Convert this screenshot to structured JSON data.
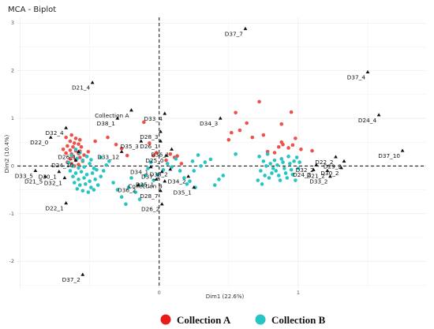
{
  "chart_data": {
    "type": "scatter",
    "title": "MCA - Biplot",
    "xlabel": "Dim1 (22.6%)",
    "ylabel": "Dim2 (10.4%)",
    "xlim": [
      -1.02,
      1.92
    ],
    "ylim": [
      -2.56,
      3.12
    ],
    "x_ticks": [
      0,
      1
    ],
    "y_ticks": [
      -2,
      -1,
      0,
      1,
      2,
      3
    ],
    "reference_lines": {
      "x": 0,
      "y": 0,
      "style": "dashed"
    },
    "grid": true,
    "legend_position": "bottom",
    "series": [
      {
        "name": "Collection A",
        "color": "#f0504a",
        "points": [
          [
            -0.67,
            0.6
          ],
          [
            -0.63,
            0.65
          ],
          [
            -0.6,
            0.58
          ],
          [
            -0.57,
            0.55
          ],
          [
            -0.64,
            0.52
          ],
          [
            -0.61,
            0.48
          ],
          [
            -0.58,
            0.46
          ],
          [
            -0.66,
            0.42
          ],
          [
            -0.62,
            0.4
          ],
          [
            -0.56,
            0.4
          ],
          [
            -0.69,
            0.35
          ],
          [
            -0.64,
            0.33
          ],
          [
            -0.6,
            0.32
          ],
          [
            -0.57,
            0.31
          ],
          [
            -0.67,
            0.27
          ],
          [
            -0.63,
            0.25
          ],
          [
            -0.58,
            0.26
          ],
          [
            -0.62,
            0.2
          ],
          [
            -0.57,
            0.18
          ],
          [
            -0.64,
            0.15
          ],
          [
            -0.6,
            0.12
          ],
          [
            -0.55,
            0.1
          ],
          [
            -0.66,
            0.08
          ],
          [
            -0.63,
            0.05
          ],
          [
            -0.58,
            0.03
          ],
          [
            -0.61,
            0.0
          ],
          [
            -0.54,
            0.23
          ],
          [
            -0.51,
            0.3
          ],
          [
            -0.46,
            0.52
          ],
          [
            -0.37,
            0.6
          ],
          [
            -0.27,
            0.37
          ],
          [
            -0.31,
            0.45
          ],
          [
            -0.23,
            0.22
          ],
          [
            -0.11,
            0.92
          ],
          [
            -0.07,
            0.48
          ],
          [
            -0.04,
            0.22
          ],
          [
            -0.02,
            0.28
          ],
          [
            0.05,
            0.12
          ],
          [
            0.08,
            0.25
          ],
          [
            0.11,
            0.18
          ],
          [
            0.13,
            0.21
          ],
          [
            0.16,
            0.05
          ],
          [
            0.55,
            1.12
          ],
          [
            0.72,
            1.35
          ],
          [
            0.63,
            0.9
          ],
          [
            0.58,
            0.75
          ],
          [
            0.5,
            0.55
          ],
          [
            0.52,
            0.7
          ],
          [
            0.67,
            0.6
          ],
          [
            0.75,
            0.65
          ],
          [
            0.78,
            0.3
          ],
          [
            0.83,
            0.28
          ],
          [
            0.88,
            0.5
          ],
          [
            0.95,
            1.13
          ],
          [
            0.98,
            0.58
          ],
          [
            1.1,
            0.32
          ],
          [
            0.88,
            0.88
          ],
          [
            1.02,
            0.35
          ],
          [
            0.86,
            0.4
          ],
          [
            0.89,
            0.45
          ],
          [
            0.93,
            0.38
          ],
          [
            0.96,
            0.44
          ]
        ]
      },
      {
        "name": "Collection B",
        "color": "#27c4c4",
        "points": [
          [
            -0.6,
            0.35
          ],
          [
            -0.57,
            0.28
          ],
          [
            -0.63,
            0.22
          ],
          [
            -0.59,
            0.16
          ],
          [
            -0.55,
            0.12
          ],
          [
            -0.52,
            0.2
          ],
          [
            -0.49,
            0.13
          ],
          [
            -0.65,
            0.07
          ],
          [
            -0.62,
            0.0
          ],
          [
            -0.58,
            -0.04
          ],
          [
            -0.54,
            -0.02
          ],
          [
            -0.5,
            0.05
          ],
          [
            -0.47,
            -0.05
          ],
          [
            -0.64,
            -0.1
          ],
          [
            -0.6,
            -0.15
          ],
          [
            -0.56,
            -0.12
          ],
          [
            -0.52,
            -0.18
          ],
          [
            -0.48,
            -0.15
          ],
          [
            -0.45,
            -0.08
          ],
          [
            -0.62,
            -0.22
          ],
          [
            -0.58,
            -0.28
          ],
          [
            -0.54,
            -0.25
          ],
          [
            -0.5,
            -0.32
          ],
          [
            -0.46,
            -0.28
          ],
          [
            -0.61,
            -0.35
          ],
          [
            -0.57,
            -0.4
          ],
          [
            -0.53,
            -0.38
          ],
          [
            -0.49,
            -0.45
          ],
          [
            -0.59,
            -0.48
          ],
          [
            -0.55,
            -0.52
          ],
          [
            -0.51,
            -0.55
          ],
          [
            -0.47,
            -0.5
          ],
          [
            -0.44,
            -0.4
          ],
          [
            -0.42,
            -0.22
          ],
          [
            -0.4,
            -0.1
          ],
          [
            -0.38,
            0.02
          ],
          [
            -0.36,
            0.1
          ],
          [
            -0.42,
            0.18
          ],
          [
            -0.33,
            -0.35
          ],
          [
            -0.3,
            -0.5
          ],
          [
            -0.27,
            -0.65
          ],
          [
            -0.24,
            -0.8
          ],
          [
            -0.22,
            -0.45
          ],
          [
            -0.2,
            -0.25
          ],
          [
            -0.17,
            -0.55
          ],
          [
            -0.14,
            -0.7
          ],
          [
            -0.12,
            -0.4
          ],
          [
            -0.1,
            -0.2
          ],
          [
            -0.08,
            -0.05
          ],
          [
            -0.06,
            0.08
          ],
          [
            -0.04,
            -0.3
          ],
          [
            -0.01,
            -0.18
          ],
          [
            0.03,
            -0.08
          ],
          [
            0.06,
            0.05
          ],
          [
            0.09,
            -0.02
          ],
          [
            0.12,
            0.15
          ],
          [
            0.15,
            -0.1
          ],
          [
            0.18,
            -0.25
          ],
          [
            0.2,
            -0.38
          ],
          [
            0.22,
            -0.32
          ],
          [
            0.24,
            0.1
          ],
          [
            0.26,
            -0.45
          ],
          [
            0.28,
            0.23
          ],
          [
            0.3,
            0.0
          ],
          [
            0.33,
            0.08
          ],
          [
            0.37,
            0.14
          ],
          [
            0.4,
            -0.4
          ],
          [
            0.43,
            -0.28
          ],
          [
            0.46,
            -0.2
          ],
          [
            0.55,
            0.25
          ],
          [
            0.25,
            -0.1
          ],
          [
            0.72,
            0.2
          ],
          [
            0.75,
            0.1
          ],
          [
            0.77,
            0.0
          ],
          [
            0.73,
            -0.1
          ],
          [
            0.76,
            -0.2
          ],
          [
            0.71,
            -0.3
          ],
          [
            0.74,
            -0.38
          ],
          [
            0.79,
            -0.25
          ],
          [
            0.81,
            -0.15
          ],
          [
            0.8,
            0.05
          ],
          [
            0.83,
            0.12
          ],
          [
            0.82,
            -0.05
          ],
          [
            0.85,
            0.02
          ],
          [
            0.84,
            -0.1
          ],
          [
            0.86,
            -0.2
          ],
          [
            0.87,
            -0.3
          ],
          [
            0.89,
            0.08
          ],
          [
            0.88,
            0.15
          ],
          [
            0.9,
            -0.05
          ],
          [
            0.91,
            -0.15
          ],
          [
            0.92,
            -0.25
          ],
          [
            0.93,
            0.2
          ],
          [
            0.94,
            0.05
          ],
          [
            0.95,
            -0.08
          ],
          [
            0.96,
            -0.18
          ],
          [
            0.97,
            0.1
          ],
          [
            0.98,
            -0.3
          ],
          [
            0.99,
            0.18
          ],
          [
            1.0,
            -0.05
          ],
          [
            1.01,
            0.08
          ],
          [
            0.78,
            0.25
          ]
        ]
      }
    ],
    "variables": [
      {
        "label": "D37_7",
        "x": 0.62,
        "y": 2.88
      },
      {
        "label": "D37_4",
        "x": 1.5,
        "y": 1.97
      },
      {
        "label": "D21_4",
        "x": -0.48,
        "y": 1.75
      },
      {
        "label": "Collection A",
        "x": -0.2,
        "y": 1.17
      },
      {
        "label": "D33_4",
        "x": 0.04,
        "y": 1.1
      },
      {
        "label": "D34_3",
        "x": 0.44,
        "y": 1.0
      },
      {
        "label": "D38_1",
        "x": -0.3,
        "y": 1.0
      },
      {
        "label": "D24_4",
        "x": 1.58,
        "y": 1.07
      },
      {
        "label": "D32_4",
        "x": -0.67,
        "y": 0.8
      },
      {
        "label": "D28_3",
        "x": 0.01,
        "y": 0.72
      },
      {
        "label": "D22_0",
        "x": -0.78,
        "y": 0.6
      },
      {
        "label": "D35_3",
        "x": -0.13,
        "y": 0.52
      },
      {
        "label": "D26_1",
        "x": 0.01,
        "y": 0.52
      },
      {
        "label": "D36_1",
        "x": 0.09,
        "y": 0.35
      },
      {
        "label": "D33_12",
        "x": -0.27,
        "y": 0.3
      },
      {
        "label": "D26_1",
        "x": -0.58,
        "y": 0.3
      },
      {
        "label": "D25_0",
        "x": 0.05,
        "y": 0.22
      },
      {
        "label": "D24_10",
        "x": -0.6,
        "y": 0.12
      },
      {
        "label": "D34_1",
        "x": -0.06,
        "y": -0.02
      },
      {
        "label": "D33_5",
        "x": -0.89,
        "y": -0.1
      },
      {
        "label": "D30_1",
        "x": -0.72,
        "y": -0.12
      },
      {
        "label": "D37_1",
        "x": 0.02,
        "y": -0.12
      },
      {
        "label": "D38_2",
        "x": 0.08,
        "y": -0.07
      },
      {
        "label": "D21_5",
        "x": -0.82,
        "y": -0.22
      },
      {
        "label": "D32_1",
        "x": -0.68,
        "y": -0.25
      },
      {
        "label": "D25_1",
        "x": -0.02,
        "y": -0.28
      },
      {
        "label": "D34_2",
        "x": 0.21,
        "y": -0.22
      },
      {
        "label": "Collection B",
        "x": 0.04,
        "y": -0.32
      },
      {
        "label": "D36_2",
        "x": -0.15,
        "y": -0.4
      },
      {
        "label": "D35_1",
        "x": 0.25,
        "y": -0.45
      },
      {
        "label": "D28_7",
        "x": 0.01,
        "y": -0.52
      },
      {
        "label": "D22_1",
        "x": -0.67,
        "y": -0.78
      },
      {
        "label": "D26_2",
        "x": 0.02,
        "y": -0.8
      },
      {
        "label": "D37_2",
        "x": -0.55,
        "y": -2.28
      },
      {
        "label": "D37_10",
        "x": 1.75,
        "y": 0.32
      },
      {
        "label": "D22_2",
        "x": 1.27,
        "y": 0.19
      },
      {
        "label": "D32_2",
        "x": 1.13,
        "y": 0.02
      },
      {
        "label": "D29_2",
        "x": 1.33,
        "y": 0.1
      },
      {
        "label": "D21_2",
        "x": 1.21,
        "y": -0.1
      },
      {
        "label": "D30_2",
        "x": 1.31,
        "y": -0.04
      },
      {
        "label": "D24_2",
        "x": 1.11,
        "y": -0.08
      },
      {
        "label": "D33_2",
        "x": 1.23,
        "y": -0.22
      }
    ]
  },
  "legend": {
    "items": [
      {
        "label": "Collection A",
        "color": "#e81a1a"
      },
      {
        "label": "Collection B",
        "color": "#27c4c4"
      }
    ]
  }
}
